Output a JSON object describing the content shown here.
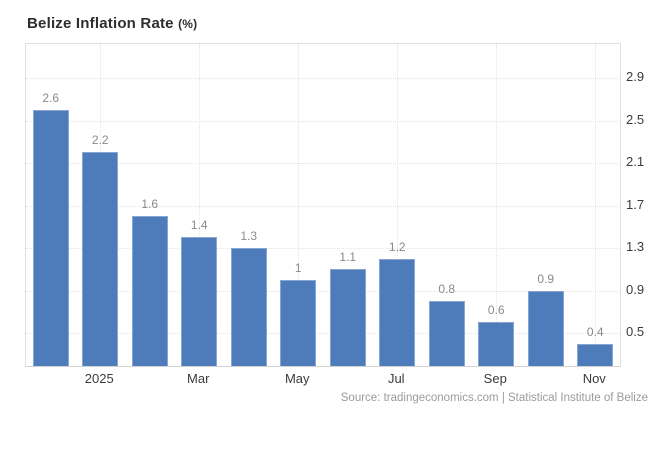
{
  "header": {
    "title": "Belize Inflation Rate",
    "unit": "(%)"
  },
  "footer": {
    "source": "Source: tradingeconomics.com | Statistical Institute of Belize"
  },
  "colors": {
    "background": "#ffffff",
    "bar_fill": "#4e7cba",
    "bar_edge": "#86a7d1",
    "grid_line": "#e4e4e4",
    "plot_border": "#e0e0e0",
    "value_label": "#8a8a8a",
    "axis_label": "#3b3b3b",
    "title_text": "#2e2e2e",
    "source_text": "#9b9b9b"
  },
  "chart_data": {
    "type": "bar",
    "title": "Belize Inflation Rate (%)",
    "values": [
      2.6,
      2.2,
      1.6,
      1.4,
      1.3,
      1,
      1.1,
      1.2,
      0.8,
      0.6,
      0.9,
      0.4
    ],
    "bar_labels": [
      "2.6",
      "2.2",
      "1.6",
      "1.4",
      "1.3",
      "1",
      "1.1",
      "1.2",
      "0.8",
      "0.6",
      "0.9",
      "0.4"
    ],
    "x_ticks": [
      {
        "label": "2025",
        "bar_index": 1
      },
      {
        "label": "Mar",
        "bar_index": 3
      },
      {
        "label": "May",
        "bar_index": 5
      },
      {
        "label": "Jul",
        "bar_index": 7
      },
      {
        "label": "Sep",
        "bar_index": 9
      },
      {
        "label": "Nov",
        "bar_index": 11
      }
    ],
    "y_ticks": [
      "2.9",
      "2.5",
      "2.1",
      "1.7",
      "1.3",
      "0.9",
      "0.5"
    ],
    "ylim": [
      0.19,
      3.22
    ],
    "grid": "dotted",
    "y_axis_side": "right",
    "legend": "none"
  }
}
